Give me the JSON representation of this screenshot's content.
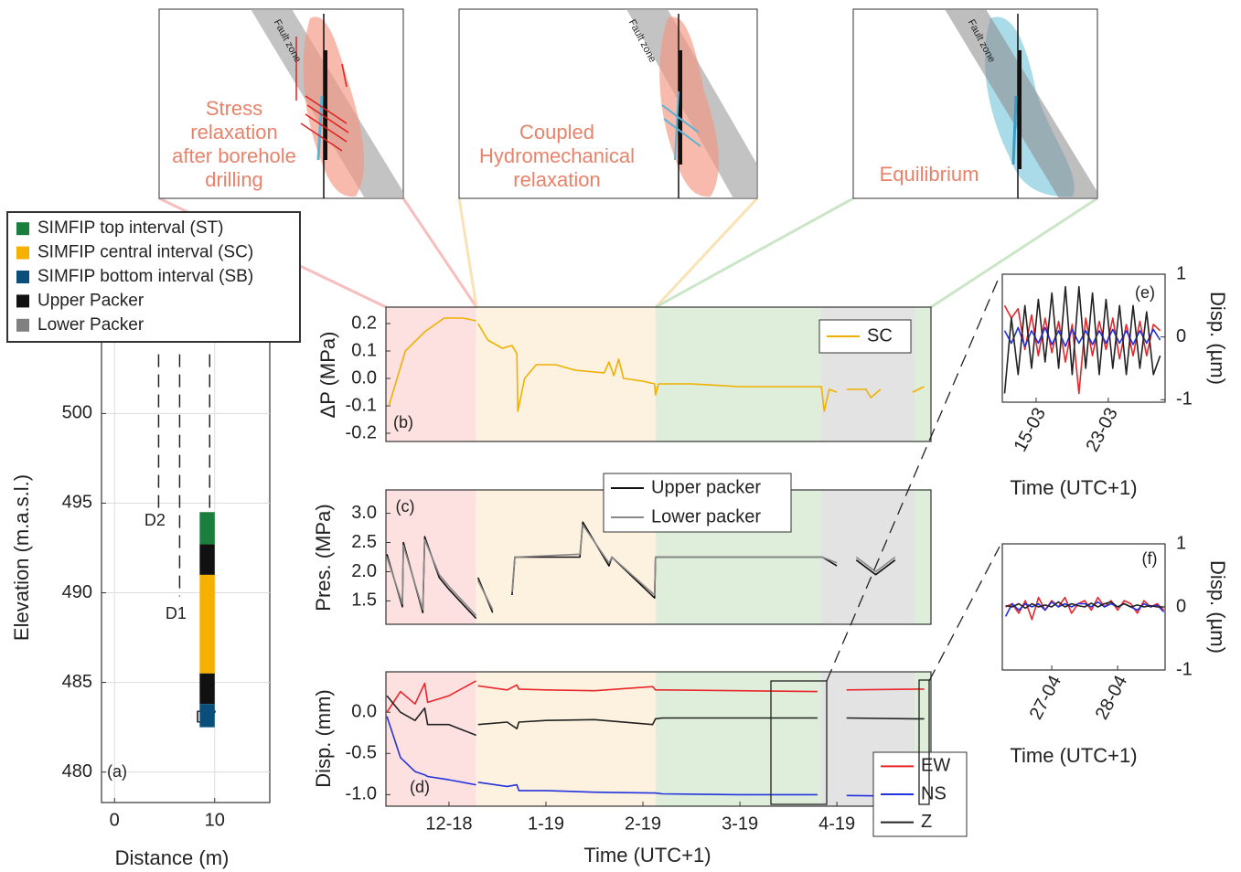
{
  "schematics": [
    {
      "fault_label": "Fault zone",
      "label_lines": [
        "Stress",
        "relaxation",
        "after borehole",
        "drilling"
      ]
    },
    {
      "fault_label": "Fault zone",
      "label_lines": [
        "Coupled",
        "Hydromechanical",
        "relaxation"
      ]
    },
    {
      "fault_label": "Fault zone",
      "label_lines": [
        "Equilibrium"
      ]
    }
  ],
  "phases": [
    {
      "from": 11.35,
      "to": 12.28,
      "color": "#fde1e1"
    },
    {
      "from": 12.28,
      "to": 14.13,
      "color": "#fdf1df"
    },
    {
      "from": 14.13,
      "to": 16.97,
      "color": "#deeedb"
    },
    {
      "from": 15.84,
      "to": 16.8,
      "color": "#e3e3e3"
    }
  ],
  "chart_data": [
    {
      "type": "borehole",
      "panel_label": "(a)",
      "xlabel": "Distance (m)",
      "ylabel": "Elevation (m.a.s.l.)",
      "xlim": [
        -1.3,
        15.5
      ],
      "ylim": [
        478.3,
        504.2
      ],
      "xticks": [
        0,
        10
      ],
      "yticks": [
        480,
        485,
        490,
        495,
        500
      ],
      "grid": true,
      "legend": [
        {
          "name": "SIMFIP top interval (ST)",
          "color": "#1a7f3c"
        },
        {
          "name": "SIMFIP central interval (SC)",
          "color": "#f5b000"
        },
        {
          "name": "SIMFIP bottom interval (SB)",
          "color": "#0a4f7a"
        },
        {
          "name": "Upper Packer",
          "color": "#111111"
        },
        {
          "name": "Lower Packer",
          "color": "#808080"
        }
      ],
      "segments": [
        {
          "color": "#1a7f3c",
          "top": 494.5,
          "bottom": 492.7
        },
        {
          "color": "#111111",
          "top": 492.7,
          "bottom": 491.0
        },
        {
          "color": "#f5b000",
          "top": 491.0,
          "bottom": 485.5
        },
        {
          "color": "#111111",
          "top": 485.5,
          "bottom": 483.8
        },
        {
          "color": "#0a4f7a",
          "top": 483.8,
          "bottom": 482.5
        }
      ],
      "segment_x": [
        8.5,
        10
      ],
      "wells": [
        {
          "name": "D2",
          "x": 4.4,
          "top": 503.3,
          "bottom": 494.6
        },
        {
          "name": "D1",
          "x": 6.5,
          "top": 503.3,
          "bottom": 489.8
        },
        {
          "name": "D7",
          "x": 9.5,
          "top": 503.3,
          "bottom": 494.6
        }
      ],
      "well_label_y": [
        494.0,
        488.8,
        483.0
      ]
    },
    {
      "type": "line",
      "panel_label": "(b)",
      "ylabel": "ΔP (MPa)",
      "xlim": [
        11.35,
        16.97
      ],
      "ylim": [
        -0.23,
        0.26
      ],
      "shaded": true,
      "yticks": [
        0.2,
        0.1,
        {
          "value": 0,
          "label": "0.0"
        },
        -0.1,
        -0.2
      ],
      "x": [
        11.38,
        11.55,
        11.75,
        11.95,
        12.15,
        12.28,
        12.29,
        12.3,
        12.4,
        12.55,
        12.65,
        12.7,
        12.71,
        12.78,
        12.9,
        13.1,
        13.3,
        13.6,
        13.65,
        13.7,
        13.75,
        13.8,
        14.0,
        14.12,
        14.13,
        14.16,
        14.5,
        15.0,
        15.5,
        15.84,
        15.87,
        15.92,
        16.0,
        16.05,
        16.1,
        16.3,
        16.35,
        16.45,
        16.6,
        16.78,
        16.9
      ],
      "series": [
        {
          "name": "SC",
          "color": "#f0b000",
          "values": [
            -0.1,
            0.1,
            0.17,
            0.22,
            0.22,
            0.21,
            null,
            0.2,
            0.14,
            0.11,
            0.12,
            0.09,
            -0.12,
            0.0,
            0.05,
            0.05,
            0.03,
            0.02,
            0.06,
            0.01,
            0.07,
            0.0,
            -0.01,
            -0.02,
            -0.06,
            -0.02,
            -0.02,
            -0.03,
            -0.03,
            -0.03,
            -0.12,
            -0.04,
            -0.05,
            null,
            -0.04,
            -0.04,
            -0.07,
            -0.04,
            null,
            -0.05,
            -0.03
          ]
        }
      ]
    },
    {
      "type": "line",
      "panel_label": "(c)",
      "ylabel": "Pres. (MPa)",
      "xlim": [
        11.35,
        16.97
      ],
      "ylim": [
        1.1,
        3.4
      ],
      "shaded": true,
      "yticks": [
        {
          "value": 3,
          "label": "3.0"
        },
        2.5,
        {
          "value": 2,
          "label": "2.0"
        },
        1.5
      ],
      "x": [
        11.36,
        11.52,
        11.53,
        11.73,
        11.75,
        11.9,
        12.0,
        12.28,
        12.29,
        12.3,
        12.45,
        12.5,
        12.65,
        12.68,
        13.35,
        13.38,
        13.65,
        13.68,
        14.12,
        14.13,
        15.85,
        16.0,
        16.05,
        16.2,
        16.4,
        16.6,
        16.7,
        16.9
      ],
      "series": [
        {
          "name": "Upper packer",
          "color": "#111111",
          "values": [
            2.3,
            1.4,
            2.5,
            1.3,
            2.6,
            1.9,
            1.7,
            1.2,
            null,
            1.9,
            1.3,
            null,
            1.6,
            2.25,
            2.25,
            2.85,
            2.1,
            2.25,
            1.55,
            2.25,
            2.25,
            2.1,
            null,
            2.2,
            1.95,
            2.2,
            null,
            2.25
          ]
        },
        {
          "name": "Lower packer",
          "color": "#888888",
          "values": [
            2.25,
            1.45,
            2.45,
            1.35,
            2.55,
            1.95,
            1.75,
            1.25,
            null,
            1.85,
            1.35,
            null,
            1.65,
            2.25,
            2.3,
            2.8,
            2.15,
            2.25,
            1.6,
            2.25,
            2.25,
            2.15,
            null,
            2.25,
            2.0,
            2.25,
            null,
            2.25
          ]
        }
      ]
    },
    {
      "type": "line",
      "panel_label": "(d)",
      "ylabel": "Disp. (mm)",
      "xlabel": "Time (UTC+1)",
      "xlim": [
        11.35,
        16.97
      ],
      "ylim": [
        -1.14,
        0.49
      ],
      "shaded": true,
      "yticks": [
        {
          "value": 0,
          "label": "0.0"
        },
        -0.5,
        {
          "value": -1,
          "label": "-1.0"
        }
      ],
      "xticks": [
        {
          "value": 12,
          "label": "12-18"
        },
        {
          "value": 13,
          "label": "1-19"
        },
        {
          "value": 14,
          "label": "2-19"
        },
        {
          "value": 15,
          "label": "3-19"
        },
        {
          "value": 16,
          "label": "4-19"
        }
      ],
      "x": [
        11.36,
        11.5,
        11.65,
        11.75,
        11.78,
        12.0,
        12.28,
        12.29,
        12.3,
        12.6,
        12.7,
        12.72,
        13.0,
        13.5,
        14.1,
        14.13,
        14.2,
        15.0,
        15.8,
        15.9,
        16.1,
        16.8,
        16.9
      ],
      "series": [
        {
          "name": "EW",
          "color": "#e8262a",
          "values": [
            0.0,
            0.25,
            0.1,
            0.35,
            0.12,
            0.2,
            0.38,
            null,
            0.32,
            0.27,
            0.33,
            0.28,
            0.27,
            0.26,
            0.31,
            0.27,
            0.27,
            0.26,
            0.25,
            null,
            0.27,
            0.28,
            0.28
          ]
        },
        {
          "name": "NS",
          "color": "#2233dd",
          "values": [
            -0.05,
            -0.55,
            -0.72,
            -0.76,
            -0.78,
            -0.82,
            -0.88,
            null,
            -0.85,
            -0.9,
            -0.88,
            -0.95,
            -0.95,
            -0.97,
            -0.98,
            -0.98,
            -0.99,
            -1.0,
            -1.0,
            null,
            -1.01,
            -1.02,
            -1.02
          ]
        },
        {
          "name": "Z",
          "color": "#222222",
          "values": [
            0.2,
            0.0,
            -0.1,
            0.05,
            -0.15,
            -0.15,
            -0.28,
            null,
            -0.15,
            -0.12,
            -0.2,
            -0.12,
            -0.1,
            -0.09,
            -0.15,
            -0.08,
            -0.07,
            -0.07,
            -0.07,
            null,
            -0.07,
            -0.08,
            -0.08
          ]
        }
      ]
    },
    {
      "type": "line",
      "panel_label": "(e)",
      "ylabel": "Disp. (µm)",
      "xlabel": "Time (UTC+1)",
      "xlim": [
        11.25,
        29.3
      ],
      "ylim": [
        -1.04,
        1
      ],
      "yticks": [
        1,
        0,
        -1
      ],
      "xticks": [
        {
          "value": 15,
          "label": "15-03"
        },
        {
          "value": 23,
          "label": "23-03"
        }
      ],
      "x": [
        11.5,
        12.25,
        13,
        13.75,
        14.5,
        15.25,
        16,
        16.75,
        17.5,
        18.25,
        19,
        19.75,
        20.5,
        21.25,
        22,
        22.75,
        23.5,
        24.25,
        25,
        25.75,
        26.5,
        27.25,
        28,
        28.75
      ],
      "series": [
        {
          "name": "EW",
          "color": "#e8262a",
          "values": [
            0.5,
            0.3,
            0.45,
            -0.2,
            0.35,
            -0.3,
            0.3,
            -0.25,
            0.25,
            -0.4,
            0.2,
            -0.9,
            0.3,
            -0.3,
            0.25,
            -0.2,
            0.3,
            -0.35,
            0.2,
            -0.3,
            0.25,
            -0.3,
            0.2,
            0.1
          ]
        },
        {
          "name": "NS",
          "color": "#2233dd",
          "values": [
            0.1,
            -0.1,
            0.15,
            -0.15,
            0.1,
            -0.1,
            0.15,
            -0.12,
            0.1,
            -0.15,
            0.12,
            -0.1,
            0.1,
            -0.12,
            0.1,
            -0.1,
            0.12,
            -0.1,
            0.1,
            -0.12,
            0.1,
            -0.1,
            0.12,
            -0.05
          ]
        },
        {
          "name": "Z",
          "color": "#222222",
          "values": [
            -0.9,
            0.3,
            -0.6,
            0.5,
            -0.5,
            0.6,
            -0.4,
            0.7,
            -0.5,
            0.8,
            -0.6,
            0.8,
            -0.5,
            0.7,
            -0.6,
            0.6,
            -0.5,
            0.5,
            -0.6,
            0.5,
            -0.5,
            0.4,
            -0.6,
            -0.3
          ]
        }
      ]
    },
    {
      "type": "line",
      "panel_label": "(f)",
      "ylabel": "Disp. (µm)",
      "xlabel": "Time (UTC+1)",
      "xlim": [
        26.25,
        28.72
      ],
      "ylim": [
        -1,
        1
      ],
      "yticks": [
        1,
        0,
        -1
      ],
      "xticks": [
        {
          "value": 27,
          "label": "27-04"
        },
        {
          "value": 28,
          "label": "28-04"
        }
      ],
      "x": [
        26.3,
        26.4,
        26.5,
        26.6,
        26.7,
        26.8,
        26.9,
        27.0,
        27.1,
        27.2,
        27.3,
        27.4,
        27.5,
        27.6,
        27.7,
        27.8,
        27.9,
        28.0,
        28.1,
        28.2,
        28.3,
        28.4,
        28.5,
        28.6,
        28.7
      ],
      "series": [
        {
          "name": "EW",
          "color": "#e8262a",
          "values": [
            0.0,
            0.05,
            -0.1,
            0.1,
            -0.2,
            0.15,
            -0.05,
            0.1,
            0.0,
            0.15,
            -0.1,
            0.05,
            0.1,
            -0.05,
            0.15,
            0.0,
            0.1,
            -0.05,
            0.1,
            0.05,
            -0.1,
            0.1,
            0.0,
            0.05,
            -0.05
          ]
        },
        {
          "name": "NS",
          "color": "#2233dd",
          "values": [
            -0.15,
            0.05,
            -0.05,
            0.05,
            0.0,
            0.05,
            -0.05,
            0.08,
            0.0,
            0.05,
            0.0,
            0.05,
            0.05,
            0.0,
            0.08,
            0.0,
            0.05,
            0.0,
            0.05,
            0.0,
            -0.05,
            0.05,
            0.0,
            0.03,
            -0.08
          ]
        },
        {
          "name": "Z",
          "color": "#222222",
          "values": [
            0.02,
            0.0,
            0.05,
            -0.02,
            0.05,
            0.0,
            0.03,
            0.0,
            0.08,
            0.0,
            0.05,
            0.02,
            0.0,
            0.06,
            0.0,
            0.05,
            0.08,
            0.0,
            0.05,
            0.0,
            0.03,
            0.0,
            0.02,
            0.0,
            0.0
          ]
        }
      ]
    }
  ]
}
